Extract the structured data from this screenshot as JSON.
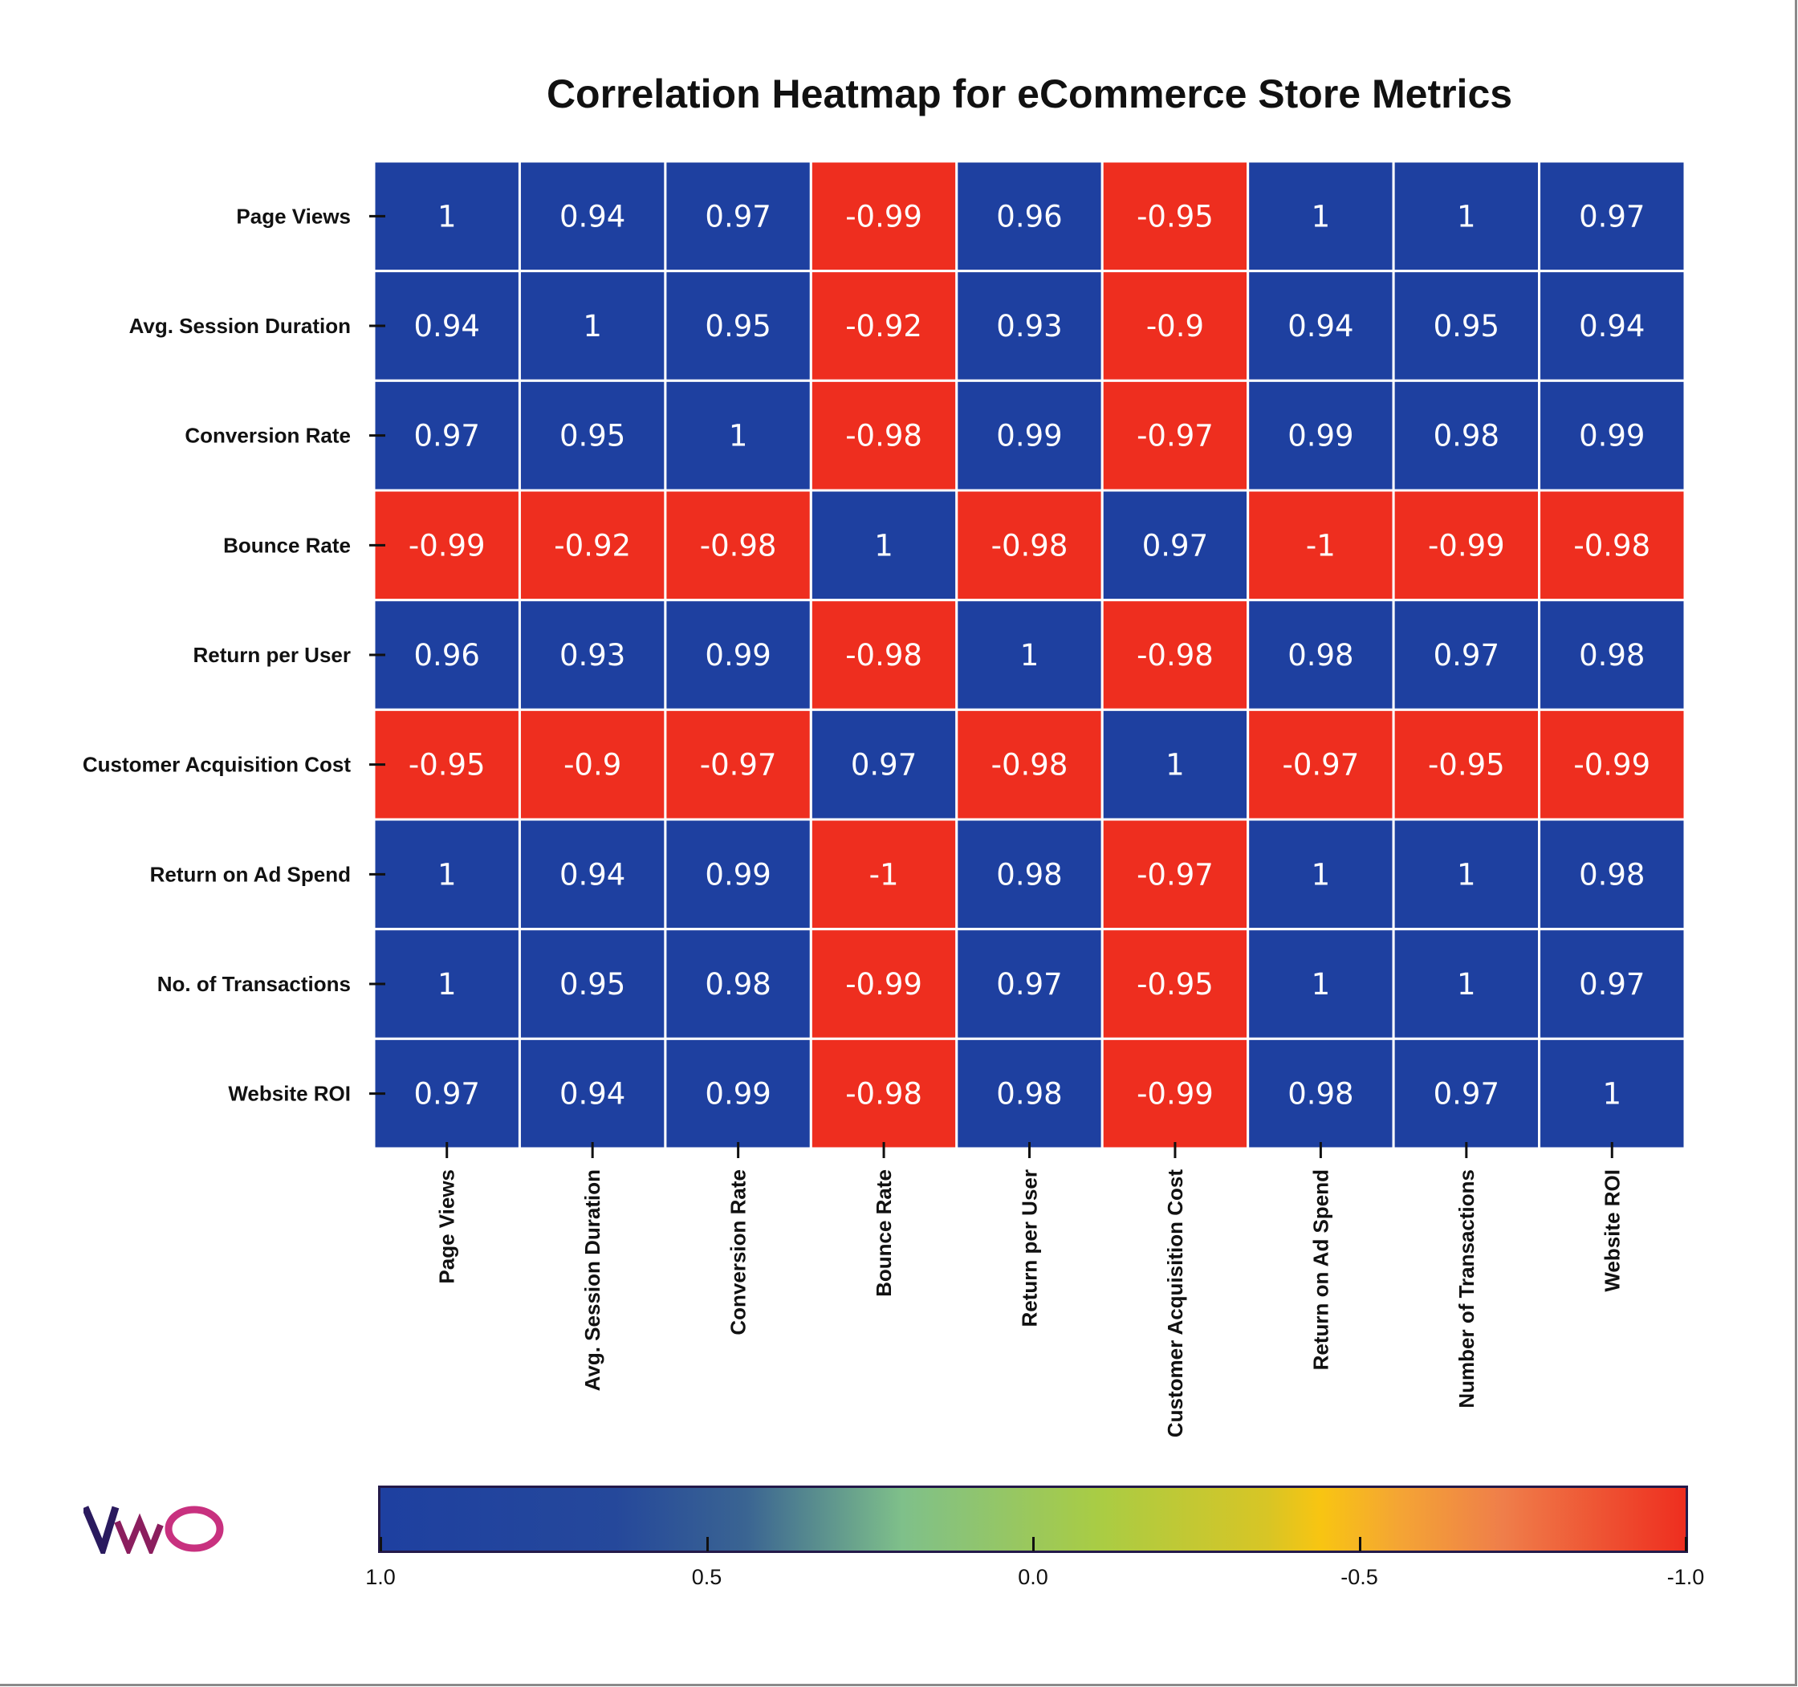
{
  "chart_data": {
    "type": "heatmap",
    "title": "Correlation Heatmap for eCommerce Store Metrics",
    "row_labels": [
      "Page Views",
      "Avg. Session Duration",
      "Conversion Rate",
      "Bounce Rate",
      "Return per User",
      "Customer Acquisition Cost",
      "Return on Ad Spend",
      "No. of Transactions",
      "Website ROI"
    ],
    "col_labels": [
      "Page Views",
      "Avg. Session Duration",
      "Conversion Rate",
      "Bounce Rate",
      "Return per User",
      "Customer Acquisition Cost",
      "Return on Ad Spend",
      "Number of Transactions",
      "Website ROI"
    ],
    "values": [
      [
        1,
        0.94,
        0.97,
        -0.99,
        0.96,
        -0.95,
        1,
        1,
        0.97
      ],
      [
        0.94,
        1,
        0.95,
        -0.92,
        0.93,
        -0.9,
        0.94,
        0.95,
        0.94
      ],
      [
        0.97,
        0.95,
        1,
        -0.98,
        0.99,
        -0.97,
        0.99,
        0.98,
        0.99
      ],
      [
        -0.99,
        -0.92,
        -0.98,
        1,
        -0.98,
        0.97,
        -1,
        -0.99,
        -0.98
      ],
      [
        0.96,
        0.93,
        0.99,
        -0.98,
        1,
        -0.98,
        0.98,
        0.97,
        0.98
      ],
      [
        -0.95,
        -0.9,
        -0.97,
        0.97,
        -0.98,
        1,
        -0.97,
        -0.95,
        -0.99
      ],
      [
        1,
        0.94,
        0.99,
        -1,
        0.98,
        -0.97,
        1,
        1,
        0.98
      ],
      [
        1,
        0.95,
        0.98,
        -0.99,
        0.97,
        -0.95,
        1,
        1,
        0.97
      ],
      [
        0.97,
        0.94,
        0.99,
        -0.98,
        0.98,
        -0.99,
        0.98,
        0.97,
        1
      ]
    ],
    "colorbar": {
      "range": [
        1.0,
        -1.0
      ],
      "ticks": [
        "1.0",
        "0.5",
        "0.0",
        "-0.5",
        "-1.0"
      ],
      "colors": {
        "positive": "#1e40a0",
        "zero": "#a9cc44",
        "negative": "#ee2e1f"
      }
    },
    "grid": false
  },
  "logo": "VWO"
}
